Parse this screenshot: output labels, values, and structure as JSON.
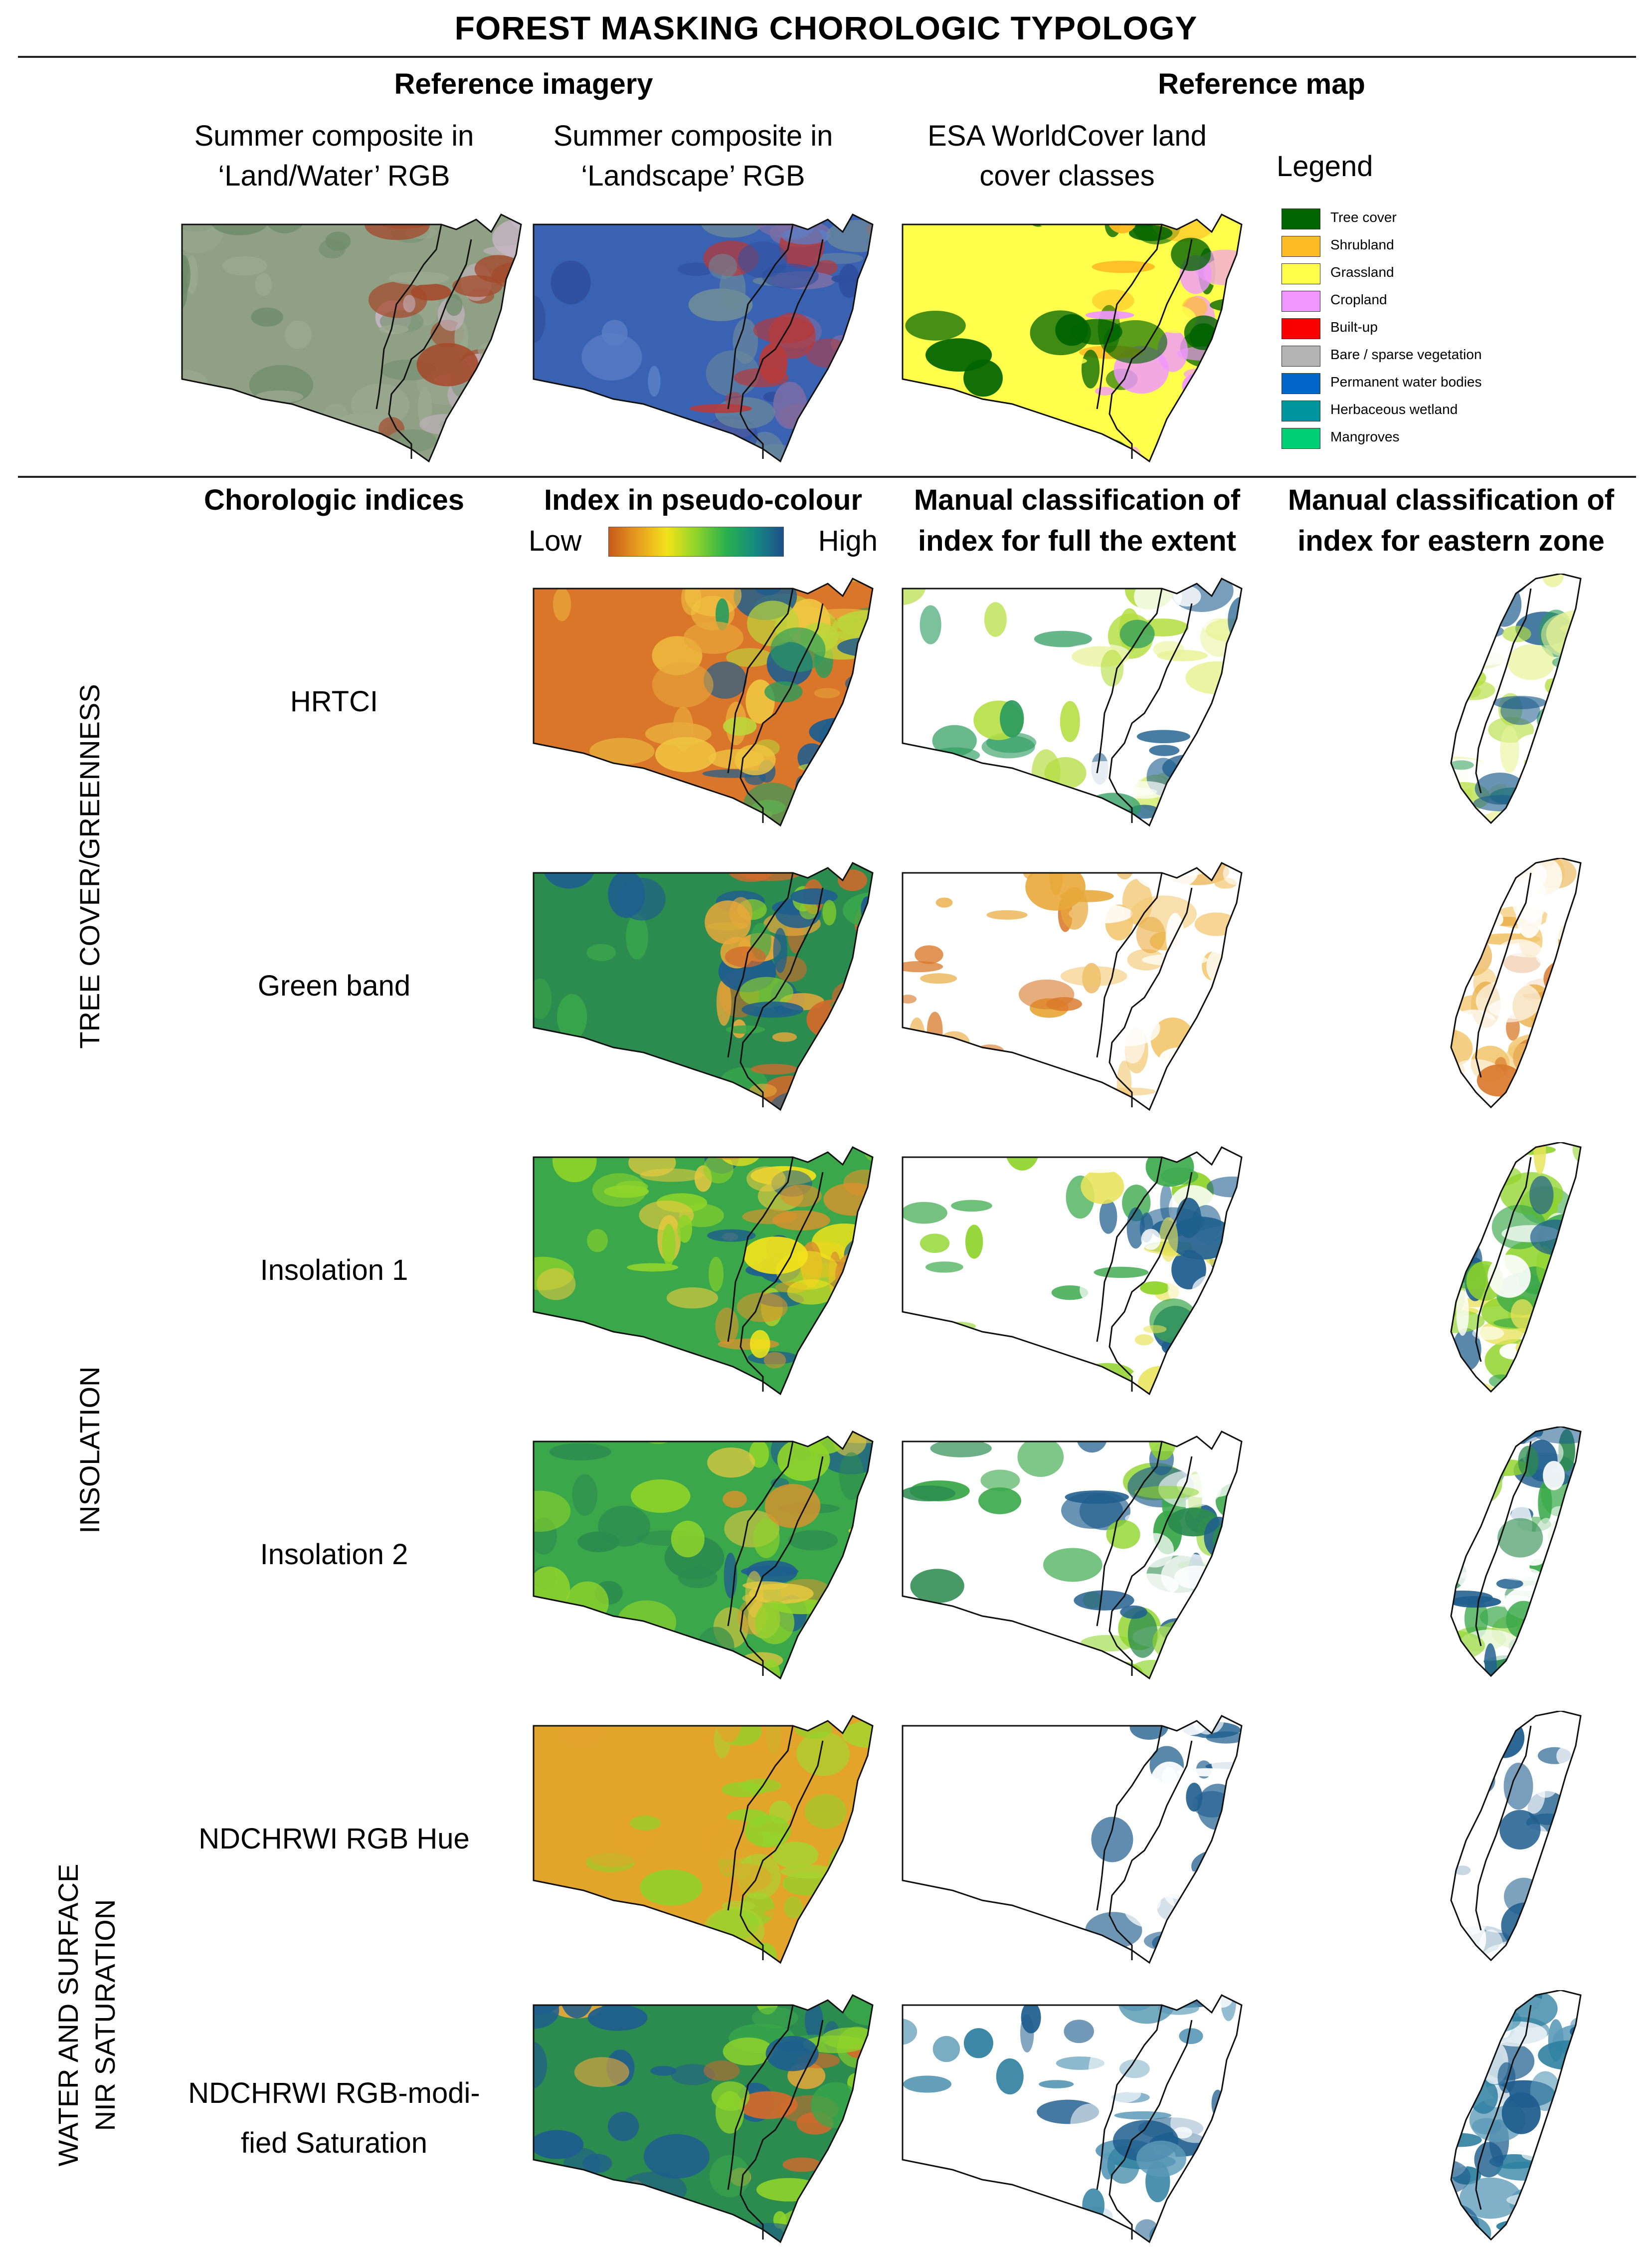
{
  "title": "FOREST MASKING CHOROLOGIC TYPOLOGY",
  "top_section": {
    "reference_imagery_header": "Reference imagery",
    "reference_map_header": "Reference map",
    "col1_caption": [
      "Summer composite in",
      "‘Land/Water’ RGB"
    ],
    "col2_caption": [
      "Summer composite in",
      "‘Landscape’ RGB"
    ],
    "col3_caption": [
      "ESA WorldCover land",
      "cover classes"
    ],
    "legend_title": "Legend",
    "legend": [
      {
        "label": "Tree cover",
        "color": "#006400"
      },
      {
        "label": "Shrubland",
        "color": "#ffbb22"
      },
      {
        "label": "Grassland",
        "color": "#ffff4c"
      },
      {
        "label": "Cropland",
        "color": "#f096ff"
      },
      {
        "label": "Built-up",
        "color": "#fa0000"
      },
      {
        "label": "Bare / sparse vegetation",
        "color": "#b4b4b4"
      },
      {
        "label": "Permanent water bodies",
        "color": "#0064c8"
      },
      {
        "label": "Herbaceous wetland",
        "color": "#0096a0"
      },
      {
        "label": "Mangroves",
        "color": "#00cf75"
      }
    ]
  },
  "columns": {
    "indices": "Chorologic indices",
    "pseudo": "Index in pseudo-colour",
    "scale_low": "Low",
    "scale_high": "High",
    "manual_full": [
      "Manual classification of",
      "index for full the extent"
    ],
    "manual_east": [
      "Manual classification of",
      "index for eastern zone"
    ]
  },
  "groups": [
    "TREE COVER/GREENNESS",
    "INSOLATION",
    [
      "WATER AND SURFACE",
      "NIR SATURATION"
    ]
  ],
  "rows": [
    {
      "label": [
        "HRTCI"
      ]
    },
    {
      "label": [
        "Green band"
      ]
    },
    {
      "label": [
        "Insolation 1"
      ]
    },
    {
      "label": [
        "Insolation 2"
      ]
    },
    {
      "label": [
        "NDCHRWI RGB Hue"
      ]
    },
    {
      "label": [
        "NDCHRWI RGB-modi-",
        "fied Saturation"
      ]
    }
  ],
  "map_palettes": {
    "landwater": [
      "#8fa085",
      "#6f8c6a",
      "#9aa88e",
      "#c7b5c4",
      "#a44a2c",
      "#7d9578"
    ],
    "landscape": [
      "#3a62b3",
      "#2f4f9e",
      "#5a7fc6",
      "#6b8a9a",
      "#b63a3a",
      "#7b6fa6"
    ],
    "worldcover": [
      "#ffff4c",
      "#006400",
      "#ffff4c",
      "#f096ff",
      "#ffbb22",
      "#006400"
    ],
    "hrtci": [
      "#d9762a",
      "#e8a83a",
      "#f0c541",
      "#bcd63a",
      "#2a9b5d",
      "#1f5e8e"
    ],
    "green_band": [
      "#2c8b4f",
      "#3aa84a",
      "#1f5e8e",
      "#e8a83a",
      "#d26a2b",
      "#8fd42a"
    ],
    "insolation1": [
      "#3aa84a",
      "#8fd42a",
      "#e8c940",
      "#d9932e",
      "#1f5e8e",
      "#f2e31b"
    ],
    "insolation2": [
      "#3aa84a",
      "#8fd42a",
      "#2c8b4f",
      "#d9932e",
      "#1f5e8e",
      "#e8c940"
    ],
    "hue": [
      "#e3a42c",
      "#8fd42a",
      "#e3a42c",
      "#8fd42a",
      "#a8d32f",
      "#e3a42c"
    ],
    "saturation": [
      "#2c8b4f",
      "#1f5e8e",
      "#e8a83a",
      "#d26a2b",
      "#3aa84a",
      "#8fd42a"
    ],
    "manual_hrtci": [
      "#ffffff",
      "#b5de42",
      "#2a9b5d",
      "#1f5e8e",
      "#e9f39a",
      "#ffffff"
    ],
    "manual_green": [
      "#ffffff",
      "#d97a2c",
      "#e8a83a",
      "#ffffff",
      "#f2c66e",
      "#ffffff"
    ],
    "manual_ins1": [
      "#ffffff",
      "#8fd42a",
      "#3aa84a",
      "#e8e35a",
      "#1f5e8e",
      "#ffffff"
    ],
    "manual_ins2": [
      "#ffffff",
      "#3aa84a",
      "#2c8b4f",
      "#ffffff",
      "#8fd42a",
      "#1f5e8e"
    ],
    "manual_hue": [
      "#ffffff",
      "#ffffff",
      "#ffffff",
      "#ffffff",
      "#1f5e8e",
      "#ffffff"
    ],
    "manual_sat": [
      "#ffffff",
      "#1f5e8e",
      "#2e7fa0",
      "#ffffff",
      "#5b9ab8",
      "#ffffff"
    ]
  }
}
